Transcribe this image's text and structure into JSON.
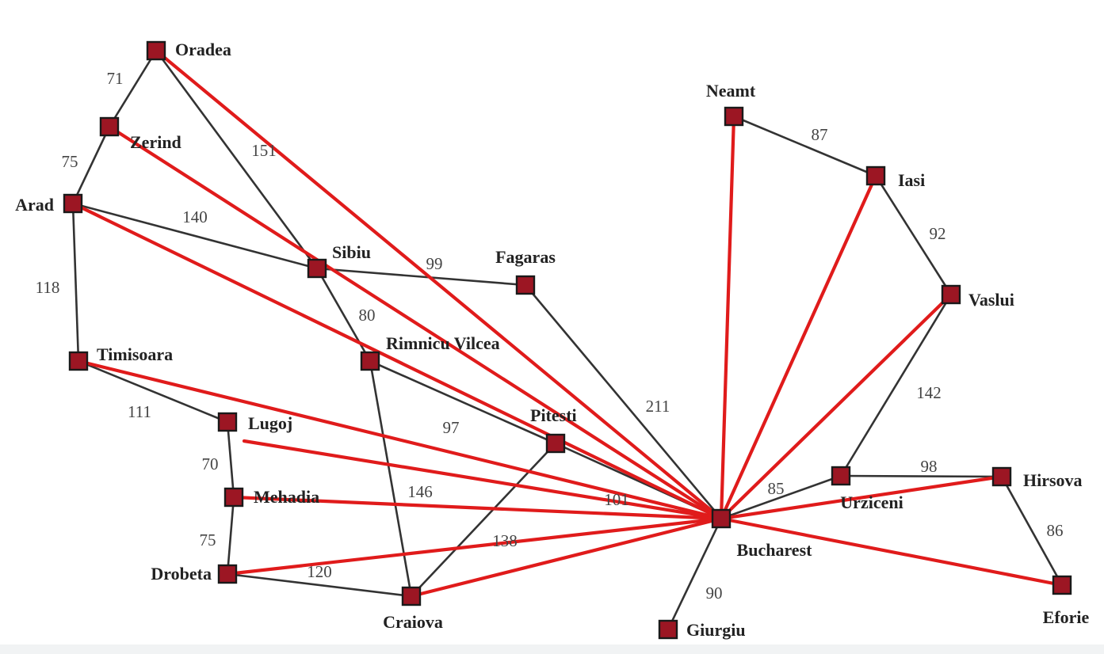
{
  "cities": [
    {
      "id": "oradea",
      "name": "Oradea"
    },
    {
      "id": "zerind",
      "name": "Zerind"
    },
    {
      "id": "arad",
      "name": "Arad"
    },
    {
      "id": "timisoara",
      "name": "Timisoara"
    },
    {
      "id": "lugoj",
      "name": "Lugoj"
    },
    {
      "id": "mehadia",
      "name": "Mehadia"
    },
    {
      "id": "drobeta",
      "name": "Drobeta"
    },
    {
      "id": "craiova",
      "name": "Craiova"
    },
    {
      "id": "sibiu",
      "name": "Sibiu"
    },
    {
      "id": "rimnicu",
      "name": "Rimnicu Vilcea"
    },
    {
      "id": "fagaras",
      "name": "Fagaras"
    },
    {
      "id": "pitesti",
      "name": "Pitesti"
    },
    {
      "id": "bucharest",
      "name": "Bucharest"
    },
    {
      "id": "giurgiu",
      "name": "Giurgiu"
    },
    {
      "id": "urziceni",
      "name": "Urziceni"
    },
    {
      "id": "hirsova",
      "name": "Hirsova"
    },
    {
      "id": "eforie",
      "name": "Eforie"
    },
    {
      "id": "vaslui",
      "name": "Vaslui"
    },
    {
      "id": "iasi",
      "name": "Iasi"
    },
    {
      "id": "neamt",
      "name": "Neamt"
    }
  ],
  "roads": [
    {
      "from": "oradea",
      "to": "zerind",
      "distance": "71"
    },
    {
      "from": "zerind",
      "to": "arad",
      "distance": "75"
    },
    {
      "from": "oradea",
      "to": "sibiu",
      "distance": "151"
    },
    {
      "from": "arad",
      "to": "sibiu",
      "distance": "140"
    },
    {
      "from": "arad",
      "to": "timisoara",
      "distance": "118"
    },
    {
      "from": "timisoara",
      "to": "lugoj",
      "distance": "111"
    },
    {
      "from": "lugoj",
      "to": "mehadia",
      "distance": "70"
    },
    {
      "from": "mehadia",
      "to": "drobeta",
      "distance": "75"
    },
    {
      "from": "drobeta",
      "to": "craiova",
      "distance": "120"
    },
    {
      "from": "sibiu",
      "to": "fagaras",
      "distance": "99"
    },
    {
      "from": "sibiu",
      "to": "rimnicu",
      "distance": "80"
    },
    {
      "from": "rimnicu",
      "to": "pitesti",
      "distance": "97"
    },
    {
      "from": "rimnicu",
      "to": "craiova",
      "distance": "146"
    },
    {
      "from": "craiova",
      "to": "pitesti",
      "distance": "138"
    },
    {
      "from": "fagaras",
      "to": "bucharest",
      "distance": "211"
    },
    {
      "from": "pitesti",
      "to": "bucharest",
      "distance": "101"
    },
    {
      "from": "bucharest",
      "to": "giurgiu",
      "distance": "90"
    },
    {
      "from": "bucharest",
      "to": "urziceni",
      "distance": "85"
    },
    {
      "from": "urziceni",
      "to": "hirsova",
      "distance": "98"
    },
    {
      "from": "hirsova",
      "to": "eforie",
      "distance": "86"
    },
    {
      "from": "urziceni",
      "to": "vaslui",
      "distance": "142"
    },
    {
      "from": "vaslui",
      "to": "iasi",
      "distance": "92"
    },
    {
      "from": "iasi",
      "to": "neamt",
      "distance": "87"
    }
  ],
  "straight_lines_to_bucharest": [
    "oradea",
    "zerind",
    "arad",
    "timisoara",
    "lugoj",
    "mehadia",
    "drobeta",
    "craiova",
    "neamt",
    "iasi",
    "vaslui",
    "hirsova",
    "eforie"
  ],
  "colors": {
    "node_fill": "#9c1623",
    "road": "#333333",
    "straight_line": "#e01b1b"
  }
}
